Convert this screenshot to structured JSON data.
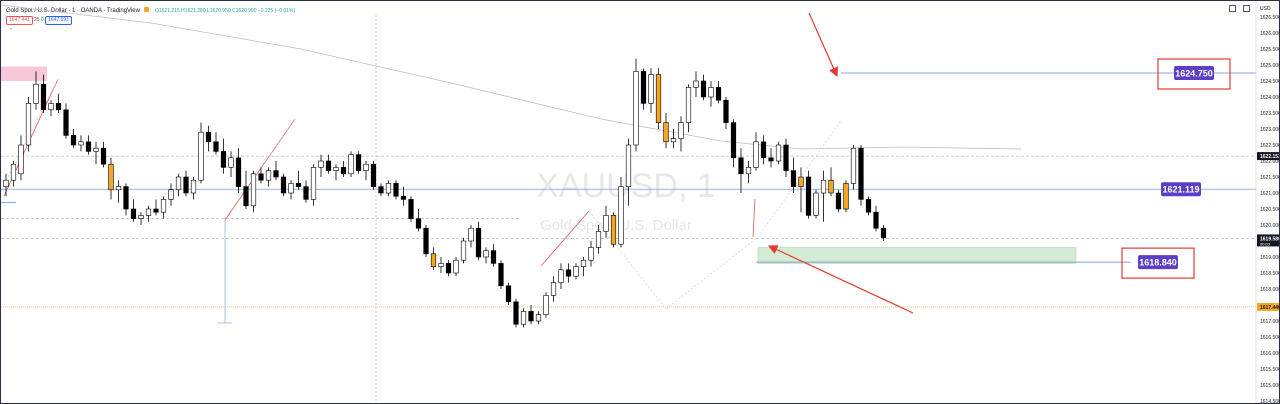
{
  "header": {
    "symbol_title": "Gold Spot / U.S. Dollar · 1 · OANDA · TradingView",
    "ohlc": "O1621.215 H1621.280 L1620.950 C1620.990 −0.225 (−0.01%)",
    "bid": "1647.441",
    "spread": "25.0",
    "ask": "1647.691",
    "hide_icon": "chevron-up-icon",
    "hide_label": "⌃"
  },
  "watermark": {
    "symbol": "XAUUSD, 1",
    "description": "Gold Spot / U.S. Dollar"
  },
  "colors": {
    "bull_body": "#ffffff",
    "bear_body": "#000000",
    "highlight_body": "#f5a623",
    "level_line": "#5b8bd6",
    "level_label_bg": "#5b3fc4",
    "annotation_box": "#e53935",
    "arrow": "#e53935",
    "supply_zone": "#f8c8d8",
    "demand_zone": "#d3ecd3",
    "moving_average": "#bdbdbd",
    "zigzag": "#e05555",
    "orange_line": "#f5a623"
  },
  "chart_data": {
    "type": "candlestick",
    "instrument": "XAUUSD",
    "timeframe": "1",
    "ylim": [
      1614.0,
      1626.5
    ],
    "y_ticks": [
      1626.5,
      1626.0,
      1625.5,
      1625.0,
      1624.5,
      1624.0,
      1623.5,
      1623.0,
      1622.5,
      1622.0,
      1621.5,
      1621.0,
      1620.5,
      1620.0,
      1619.5,
      1619.0,
      1618.5,
      1618.0,
      1617.5,
      1617.0,
      1616.5,
      1616.0,
      1615.5,
      1615.0,
      1614.5,
      1614.0
    ],
    "y_tick_labels": [
      "1626.500",
      "1626.000",
      "1625.500",
      "1625.000",
      "1624.500",
      "1624.000",
      "1623.500",
      "1623.000",
      "1622.500",
      "1622.000",
      "1621.500",
      "1621.000",
      "1620.500",
      "1620.000",
      "1619.500",
      "1619.000",
      "1618.500",
      "1618.000",
      "1617.500",
      "1617.000",
      "1616.500",
      "1616.000",
      "1615.500",
      "1615.000",
      "1614.500",
      "1614.000"
    ],
    "axis_unit": "USD",
    "current_price": {
      "value": 1619.58,
      "label": "1619.580",
      "countdown": "00:03"
    },
    "ma_value": {
      "value": 1622.153,
      "label": "1622.153"
    },
    "orange_level": {
      "value": 1617.44,
      "label": "1617.440"
    },
    "candles": [
      [
        1621.2,
        1621.6,
        1620.9,
        1621.4
      ],
      [
        1621.4,
        1622.0,
        1621.2,
        1621.9
      ],
      [
        1621.6,
        1622.8,
        1621.4,
        1622.5
      ],
      [
        1622.5,
        1624.0,
        1622.3,
        1623.8
      ],
      [
        1623.8,
        1624.8,
        1623.6,
        1624.4
      ],
      [
        1624.4,
        1624.7,
        1623.5,
        1623.6
      ],
      [
        1623.6,
        1623.9,
        1623.4,
        1623.8
      ],
      [
        1623.8,
        1624.1,
        1623.5,
        1623.6
      ],
      [
        1623.6,
        1623.8,
        1622.7,
        1622.8
      ],
      [
        1622.8,
        1623.0,
        1622.4,
        1622.5
      ],
      [
        1622.5,
        1622.8,
        1622.3,
        1622.6
      ],
      [
        1622.6,
        1622.8,
        1622.2,
        1622.3
      ],
      [
        1622.3,
        1622.6,
        1621.9,
        1622.4
      ],
      [
        1622.4,
        1622.6,
        1621.8,
        1621.9
      ],
      [
        1621.9,
        1622.1,
        1620.8,
        1621.1
      ],
      [
        1621.1,
        1621.4,
        1620.7,
        1621.2
      ],
      [
        1621.2,
        1621.3,
        1620.3,
        1620.5
      ],
      [
        1620.5,
        1620.8,
        1620.1,
        1620.2
      ],
      [
        1620.2,
        1620.4,
        1620.0,
        1620.3
      ],
      [
        1620.3,
        1620.6,
        1620.1,
        1620.5
      ],
      [
        1620.5,
        1620.8,
        1620.3,
        1620.4
      ],
      [
        1620.4,
        1620.9,
        1620.2,
        1620.8
      ],
      [
        1620.8,
        1621.3,
        1620.6,
        1621.1
      ],
      [
        1621.1,
        1621.6,
        1620.9,
        1621.5
      ],
      [
        1621.5,
        1621.7,
        1620.9,
        1621.0
      ],
      [
        1621.0,
        1621.5,
        1620.8,
        1621.4
      ],
      [
        1621.4,
        1623.2,
        1621.3,
        1622.9
      ],
      [
        1622.9,
        1623.1,
        1622.3,
        1622.6
      ],
      [
        1622.6,
        1622.9,
        1622.2,
        1622.3
      ],
      [
        1622.3,
        1622.7,
        1621.6,
        1621.8
      ],
      [
        1621.8,
        1622.3,
        1621.5,
        1622.1
      ],
      [
        1622.1,
        1622.4,
        1621.0,
        1621.2
      ],
      [
        1621.2,
        1621.7,
        1620.5,
        1620.6
      ],
      [
        1620.6,
        1621.7,
        1620.4,
        1621.6
      ],
      [
        1621.6,
        1621.8,
        1621.3,
        1621.4
      ],
      [
        1621.4,
        1621.8,
        1621.2,
        1621.7
      ],
      [
        1621.7,
        1622.0,
        1621.4,
        1621.5
      ],
      [
        1621.5,
        1621.6,
        1620.9,
        1621.0
      ],
      [
        1621.0,
        1621.4,
        1620.8,
        1621.3
      ],
      [
        1621.3,
        1621.7,
        1621.1,
        1621.2
      ],
      [
        1621.2,
        1621.4,
        1620.7,
        1620.8
      ],
      [
        1620.8,
        1621.9,
        1620.6,
        1621.8
      ],
      [
        1621.8,
        1622.2,
        1621.5,
        1622.0
      ],
      [
        1622.0,
        1622.2,
        1621.6,
        1621.7
      ],
      [
        1621.7,
        1621.9,
        1621.4,
        1621.8
      ],
      [
        1621.8,
        1622.0,
        1621.5,
        1621.6
      ],
      [
        1621.6,
        1622.3,
        1621.5,
        1622.2
      ],
      [
        1622.2,
        1622.3,
        1621.6,
        1621.7
      ],
      [
        1621.7,
        1622.0,
        1621.4,
        1621.9
      ],
      [
        1621.9,
        1622.0,
        1621.1,
        1621.2
      ],
      [
        1621.2,
        1621.3,
        1620.9,
        1621.0
      ],
      [
        1621.0,
        1621.4,
        1620.9,
        1621.3
      ],
      [
        1621.3,
        1621.4,
        1620.8,
        1620.9
      ],
      [
        1620.9,
        1621.2,
        1620.6,
        1620.8
      ],
      [
        1620.8,
        1620.9,
        1620.1,
        1620.2
      ],
      [
        1620.2,
        1620.5,
        1619.8,
        1619.9
      ],
      [
        1619.9,
        1620.0,
        1619.0,
        1619.1
      ],
      [
        1619.1,
        1619.3,
        1618.6,
        1618.7
      ],
      [
        1618.7,
        1619.0,
        1618.5,
        1618.8
      ],
      [
        1618.8,
        1618.9,
        1618.4,
        1618.5
      ],
      [
        1618.5,
        1619.0,
        1618.4,
        1618.9
      ],
      [
        1618.9,
        1619.6,
        1618.8,
        1619.5
      ],
      [
        1619.5,
        1620.0,
        1619.3,
        1619.9
      ],
      [
        1619.9,
        1620.1,
        1618.9,
        1619.0
      ],
      [
        1619.0,
        1619.3,
        1618.8,
        1619.2
      ],
      [
        1619.2,
        1619.4,
        1618.7,
        1618.8
      ],
      [
        1618.8,
        1618.9,
        1618.0,
        1618.1
      ],
      [
        1618.1,
        1618.2,
        1617.5,
        1617.6
      ],
      [
        1617.6,
        1617.7,
        1616.8,
        1616.9
      ],
      [
        1616.9,
        1617.4,
        1616.8,
        1617.3
      ],
      [
        1617.3,
        1617.5,
        1616.9,
        1617.0
      ],
      [
        1617.0,
        1617.3,
        1616.9,
        1617.2
      ],
      [
        1617.2,
        1617.9,
        1617.1,
        1617.8
      ],
      [
        1617.8,
        1618.4,
        1617.6,
        1618.2
      ],
      [
        1618.2,
        1618.8,
        1618.0,
        1618.6
      ],
      [
        1618.6,
        1618.8,
        1618.2,
        1618.4
      ],
      [
        1618.4,
        1618.8,
        1618.3,
        1618.7
      ],
      [
        1618.7,
        1619.0,
        1618.4,
        1618.9
      ],
      [
        1618.9,
        1619.5,
        1618.7,
        1619.3
      ],
      [
        1619.3,
        1620.0,
        1619.1,
        1619.8
      ],
      [
        1619.8,
        1620.6,
        1619.6,
        1620.3
      ],
      [
        1620.3,
        1620.4,
        1619.3,
        1619.4
      ],
      [
        1619.4,
        1621.5,
        1619.3,
        1621.2
      ],
      [
        1621.2,
        1622.7,
        1620.6,
        1622.5
      ],
      [
        1622.5,
        1625.2,
        1622.3,
        1624.8
      ],
      [
        1624.8,
        1624.9,
        1623.6,
        1623.8
      ],
      [
        1623.8,
        1624.9,
        1623.5,
        1624.7
      ],
      [
        1624.7,
        1624.9,
        1623.0,
        1623.2
      ],
      [
        1623.2,
        1623.5,
        1622.4,
        1622.6
      ],
      [
        1622.6,
        1623.0,
        1622.4,
        1622.7
      ],
      [
        1622.7,
        1623.4,
        1622.3,
        1623.2
      ],
      [
        1623.2,
        1624.4,
        1622.9,
        1624.3
      ],
      [
        1624.3,
        1624.8,
        1624.0,
        1624.5
      ],
      [
        1624.5,
        1624.7,
        1623.9,
        1624.0
      ],
      [
        1624.0,
        1624.5,
        1623.7,
        1624.3
      ],
      [
        1624.3,
        1624.5,
        1623.8,
        1623.9
      ],
      [
        1623.9,
        1624.0,
        1623.0,
        1623.2
      ],
      [
        1623.2,
        1623.3,
        1621.8,
        1622.1
      ],
      [
        1622.1,
        1622.4,
        1621.0,
        1621.6
      ],
      [
        1621.6,
        1622.0,
        1621.3,
        1621.8
      ],
      [
        1621.8,
        1622.9,
        1621.7,
        1622.6
      ],
      [
        1622.6,
        1622.8,
        1621.9,
        1622.1
      ],
      [
        1622.1,
        1622.4,
        1621.8,
        1622.0
      ],
      [
        1622.0,
        1622.6,
        1621.9,
        1622.5
      ],
      [
        1622.5,
        1622.7,
        1621.5,
        1621.7
      ],
      [
        1621.7,
        1622.1,
        1621.0,
        1621.2
      ],
      [
        1621.2,
        1621.8,
        1620.4,
        1621.5
      ],
      [
        1621.5,
        1621.7,
        1620.2,
        1620.3
      ],
      [
        1620.3,
        1621.1,
        1620.2,
        1621.0
      ],
      [
        1621.0,
        1621.7,
        1620.1,
        1621.4
      ],
      [
        1621.4,
        1621.8,
        1620.9,
        1621.0
      ],
      [
        1621.0,
        1621.1,
        1620.4,
        1620.5
      ],
      [
        1620.5,
        1621.4,
        1620.4,
        1621.3
      ],
      [
        1621.3,
        1622.5,
        1621.1,
        1622.4
      ],
      [
        1622.4,
        1622.5,
        1620.6,
        1620.8
      ],
      [
        1620.8,
        1620.9,
        1620.3,
        1620.4
      ],
      [
        1620.4,
        1620.6,
        1619.8,
        1619.9
      ],
      [
        1619.9,
        1620.0,
        1619.5,
        1619.6
      ]
    ],
    "highlighted_candle_indices": [
      14,
      57,
      81,
      87,
      88,
      106,
      110,
      112
    ],
    "horizontal_levels": [
      {
        "value": 1624.75,
        "label": "1624.750"
      },
      {
        "value": 1621.119,
        "label": "1621.119"
      },
      {
        "value": 1618.84,
        "label": "1618.840"
      }
    ],
    "zones": [
      {
        "kind": "supply",
        "from": 1624.5,
        "to": 1624.95
      },
      {
        "kind": "demand",
        "from": 1618.8,
        "to": 1619.3
      }
    ]
  }
}
